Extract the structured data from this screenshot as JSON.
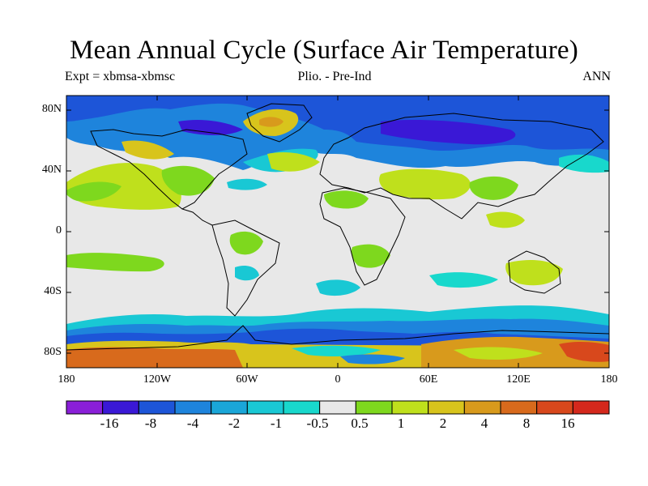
{
  "title": "Mean Annual Cycle (Surface Air Temperature)",
  "experiment": "Expt = xbmsa-xbmsc",
  "comparison": "Plio. - Pre-Ind",
  "season": "ANN",
  "lat_labels": [
    "80N",
    "40N",
    "0",
    "40S",
    "80S"
  ],
  "lon_labels": [
    "180",
    "120W",
    "60W",
    "0",
    "60E",
    "120E",
    "180"
  ],
  "colorbar": {
    "colors": [
      "#8a1fd8",
      "#3a18d6",
      "#1d55d8",
      "#1e84dc",
      "#1aa6d8",
      "#19c8d4",
      "#18d8cc",
      "#e8e8e8",
      "#7ed81e",
      "#bfe01c",
      "#d8c41c",
      "#d89a1c",
      "#d86a1c",
      "#d8481c",
      "#d4281c"
    ],
    "labels": [
      "-16",
      "-8",
      "-4",
      "-2",
      "-1",
      "-0.5",
      "0.5",
      "1",
      "2",
      "4",
      "8",
      "16"
    ]
  },
  "colors": {
    "ocean_neutral": "#e8e8e8",
    "deep_blue": "#1d55d8",
    "mid_blue": "#1e84dc",
    "light_blue": "#1aa6d8",
    "cyan": "#19c8d4",
    "turquoise": "#18d8cc",
    "green": "#7ed81e",
    "yellow_green": "#bfe01c",
    "gold": "#d8c41c",
    "orange": "#d89a1c",
    "dark_orange": "#d86a1c",
    "red_orange": "#d8481c",
    "indigo": "#3a18d6"
  }
}
